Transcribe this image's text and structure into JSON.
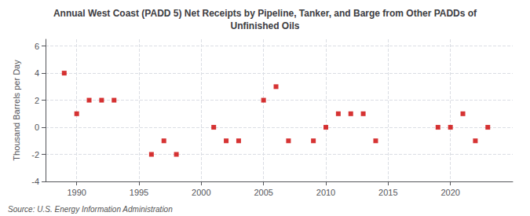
{
  "chart_data": {
    "type": "scatter",
    "title": "Annual West Coast (PADD 5) Net Receipts by Pipeline, Tanker, and Barge from Other PADDs of\nUnfinished Oils",
    "ylabel": "Thousand Barrels per Day",
    "source": "Source: U.S. Energy Information Administration",
    "x": [
      1989,
      1990,
      1991,
      1992,
      1993,
      1996,
      1997,
      1998,
      2001,
      2002,
      2003,
      2005,
      2006,
      2007,
      2009,
      2010,
      2011,
      2012,
      2013,
      2014,
      2019,
      2020,
      2021,
      2022,
      2023
    ],
    "values": [
      4.0,
      1.0,
      2.0,
      2.0,
      2.0,
      -2.0,
      -1.0,
      -2.0,
      0.0,
      -1.0,
      -1.0,
      2.0,
      3.0,
      -1.0,
      -1.0,
      0.0,
      1.0,
      1.0,
      1.0,
      -1.0,
      0.0,
      0.0,
      1.0,
      -1.0,
      0.0
    ],
    "color": "#cc0000",
    "marker": "square",
    "xlim": [
      1987.5,
      2025
    ],
    "ylim": [
      -4,
      6.5
    ],
    "xticks": [
      1990,
      1995,
      2000,
      2005,
      2010,
      2015,
      2020
    ],
    "yticks": [
      -4,
      -2,
      0,
      2,
      4,
      6
    ],
    "grid": true
  }
}
